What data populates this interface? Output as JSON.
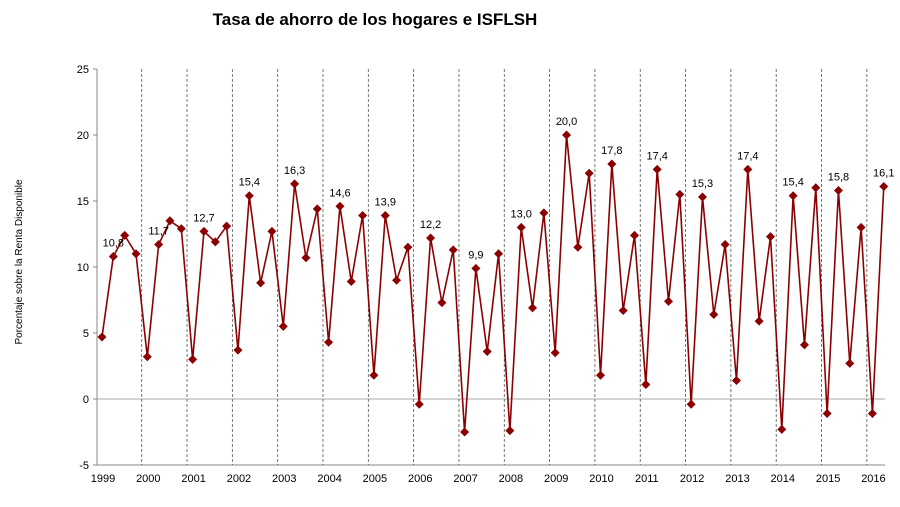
{
  "chart_data": {
    "type": "line",
    "title": "Tasa de ahorro de los hogares e ISFLSH",
    "ylabel": "Porcentaje sobre la Renta Disponible",
    "xlabel": "",
    "ylim": [
      -5,
      25
    ],
    "yticks": [
      "-5",
      "0",
      "5",
      "10",
      "15",
      "20",
      "25"
    ],
    "ytick_values": [
      -5,
      0,
      5,
      10,
      15,
      20,
      25
    ],
    "years": [
      "1999",
      "2000",
      "2001",
      "2002",
      "2003",
      "2004",
      "2005",
      "2006",
      "2007",
      "2008",
      "2009",
      "2010",
      "2011",
      "2012",
      "2013",
      "2014",
      "2015",
      "2016"
    ],
    "frequency": "quarterly",
    "grid": "vertical dashed lines at year boundaries",
    "series_color": "#8B0000",
    "marker": "diamond",
    "values": [
      4.7,
      10.8,
      12.4,
      11.0,
      3.2,
      11.7,
      13.5,
      12.9,
      3.0,
      12.7,
      11.9,
      13.1,
      3.7,
      15.4,
      8.8,
      12.7,
      5.5,
      16.3,
      10.7,
      14.4,
      4.3,
      14.6,
      8.9,
      13.9,
      1.8,
      13.9,
      9.0,
      11.5,
      -0.4,
      12.2,
      7.3,
      11.3,
      -2.5,
      9.9,
      3.6,
      11.0,
      -2.4,
      13.0,
      6.9,
      14.1,
      3.5,
      20.0,
      11.5,
      17.1,
      1.8,
      17.8,
      6.7,
      12.4,
      1.1,
      17.4,
      7.4,
      15.5,
      -0.4,
      15.3,
      6.4,
      11.7,
      1.4,
      17.4,
      5.9,
      12.3,
      -2.3,
      15.4,
      4.1,
      16.0,
      -1.1,
      15.8,
      2.7,
      13.0,
      -1.1,
      16.1
    ],
    "data_labels": [
      "10,8",
      "11,7",
      "12,7",
      "15,4",
      "16,3",
      "14,6",
      "13,9",
      "12,2",
      "9,9",
      "13,0",
      "20,0",
      "17,8",
      "17,4",
      "15,3",
      "17,4",
      "15,4",
      "15,8",
      "16,1"
    ]
  }
}
